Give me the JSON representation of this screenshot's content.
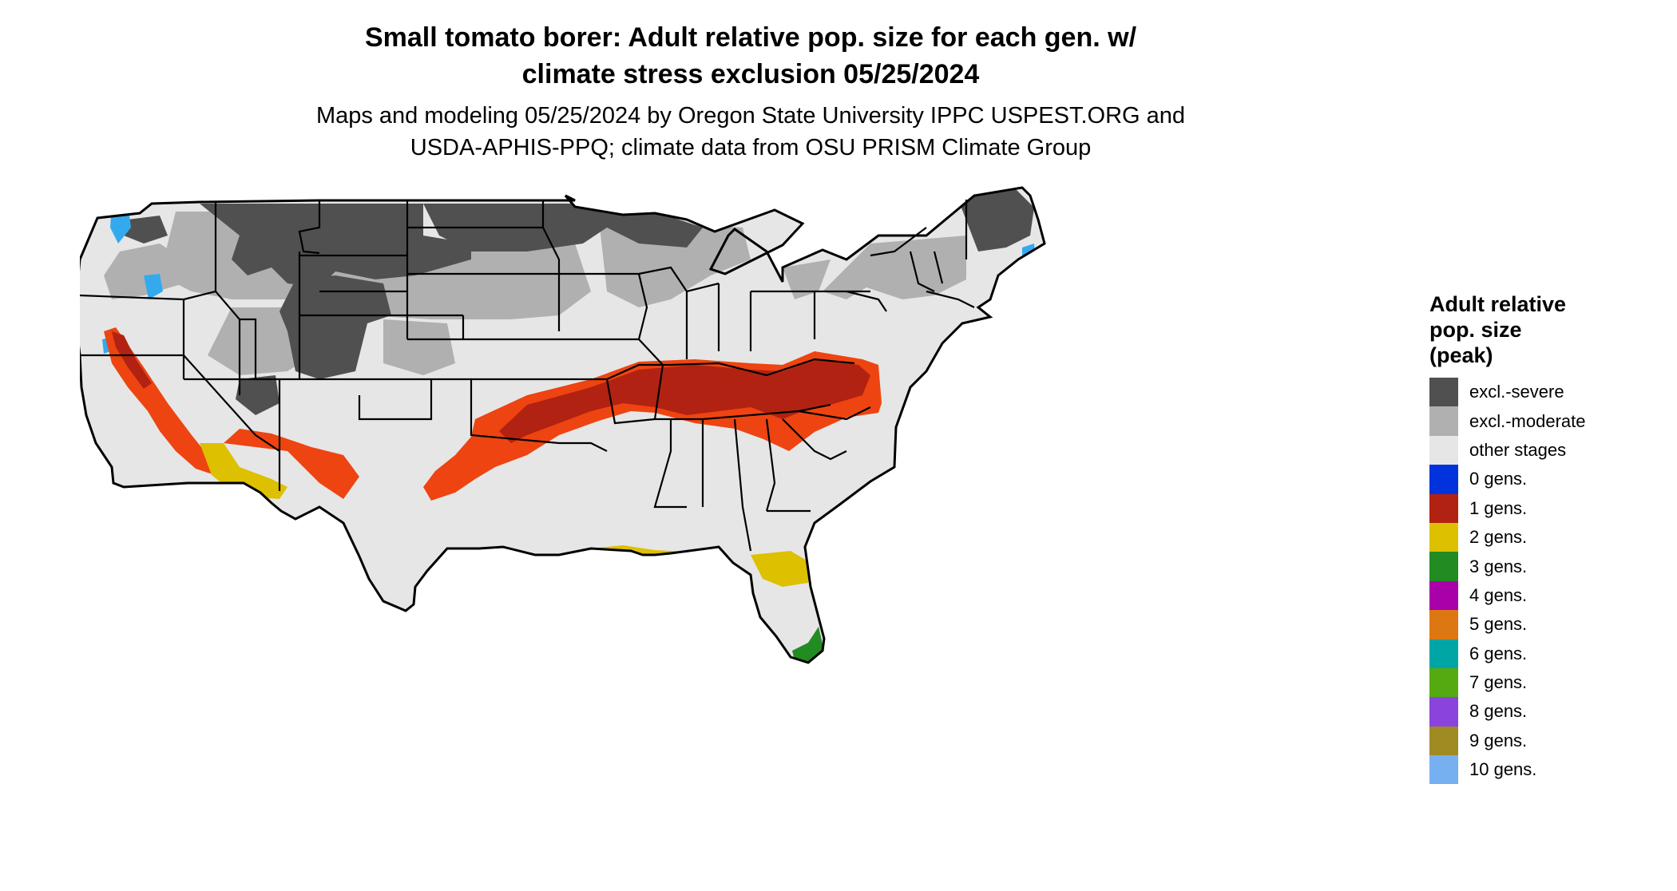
{
  "title": {
    "line1": "Small tomato borer: Adult relative pop. size for each gen. w/",
    "line2": "climate stress exclusion 05/25/2024"
  },
  "subtitle": {
    "line1": "Maps and modeling 05/25/2024 by Oregon State University IPPC USPEST.ORG and",
    "line2": "USDA-APHIS-PPQ; climate data from OSU PRISM Climate Group"
  },
  "legend": {
    "title_lines": [
      "Adult relative",
      "pop. size",
      "(peak)"
    ],
    "items": [
      {
        "label": "excl.-severe",
        "color": "#505050"
      },
      {
        "label": "excl.-moderate",
        "color": "#b0b0b0"
      },
      {
        "label": "other stages",
        "color": "#e6e6e6"
      },
      {
        "label": "0 gens.",
        "color": "#0033dd"
      },
      {
        "label": "1 gens.",
        "color": "#b22212"
      },
      {
        "label": "2 gens.",
        "color": "#ddc000"
      },
      {
        "label": "3 gens.",
        "color": "#228b22"
      },
      {
        "label": "4 gens.",
        "color": "#aa00aa"
      },
      {
        "label": "5 gens.",
        "color": "#dd7711"
      },
      {
        "label": "6 gens.",
        "color": "#00a6a6"
      },
      {
        "label": "7 gens.",
        "color": "#55aa11"
      },
      {
        "label": "8 gens.",
        "color": "#8a44dd"
      },
      {
        "label": "9 gens.",
        "color": "#a08a22"
      },
      {
        "label": "10 gens.",
        "color": "#77b0f0"
      }
    ]
  },
  "map_colors": {
    "severe": "#505050",
    "moderate": "#b0b0b0",
    "other": "#e6e6e6",
    "gen1": "#b22212",
    "gen1_edge": "#ee4411",
    "gen2": "#ddc000",
    "gen3": "#228b22",
    "snow_blue": "#33aaee",
    "border": "#000000"
  }
}
